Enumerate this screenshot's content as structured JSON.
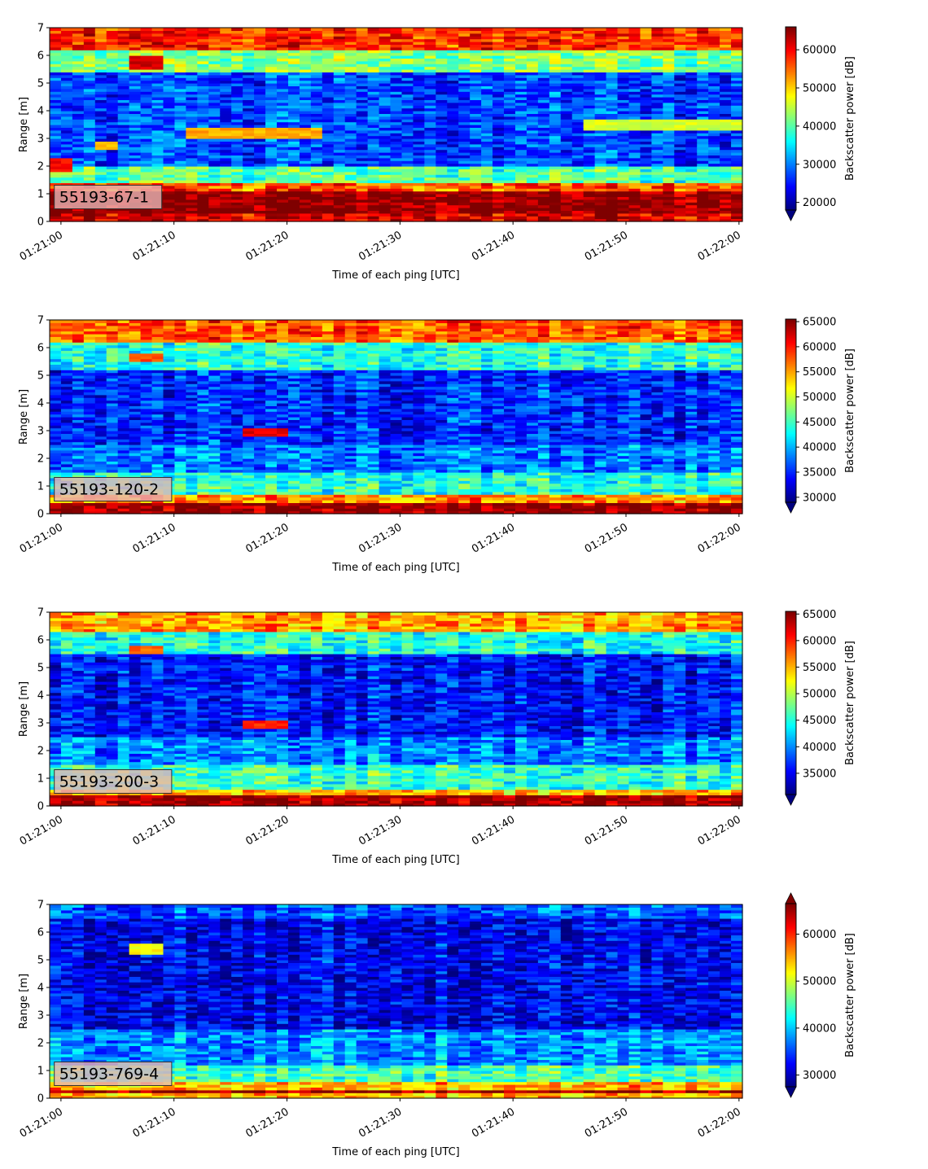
{
  "colors": {
    "jet": [
      "#00007f",
      "#0000ff",
      "#007fff",
      "#00ffff",
      "#7fff7f",
      "#ffff00",
      "#ff7f00",
      "#ff0000",
      "#7f0000"
    ],
    "annotation_bg": "#e8b4b4",
    "axis": "#000000"
  },
  "chart_data": [
    {
      "type": "heatmap",
      "annotation": "55193-67-1",
      "xlabel": "Time of each ping [UTC]",
      "ylabel": "Range [m]",
      "xticks": [
        "01:21:00",
        "01:21:10",
        "01:21:20",
        "01:21:30",
        "01:21:40",
        "01:21:50",
        "01:22:00"
      ],
      "xlim_seconds": [
        -1,
        60.3
      ],
      "ylim": [
        0,
        7
      ],
      "yticks": [
        0,
        1,
        2,
        3,
        4,
        5,
        6,
        7
      ],
      "colorbar_label": "Backscatter power [dB]",
      "clim": [
        18000,
        66000
      ],
      "cticks": [
        20000,
        30000,
        40000,
        50000,
        60000
      ],
      "colorbar_extend": "min",
      "bands": [
        {
          "range": [
            0,
            0.3
          ],
          "value": 62000
        },
        {
          "range": [
            0.3,
            1.1
          ],
          "value": 66000
        },
        {
          "range": [
            1.1,
            1.4
          ],
          "value": 56000
        },
        {
          "range": [
            1.4,
            2.0
          ],
          "value": 40000
        },
        {
          "range": [
            2.0,
            5.4
          ],
          "value": 27000
        },
        {
          "range": [
            5.4,
            6.2
          ],
          "value": 42000
        },
        {
          "range": [
            6.2,
            7.0
          ],
          "value": 58000
        }
      ],
      "features": [
        {
          "x": [
            -1,
            1
          ],
          "range": [
            1.8,
            2.3
          ],
          "value": 60000
        },
        {
          "x": [
            3.5,
            5.5
          ],
          "range": [
            2.6,
            2.9
          ],
          "value": 50000
        },
        {
          "x": [
            11.5,
            23.5
          ],
          "range": [
            3.0,
            3.4
          ],
          "value": 52000
        },
        {
          "x": [
            6.5,
            9.5
          ],
          "range": [
            5.5,
            6.0
          ],
          "value": 62000
        },
        {
          "x": [
            46,
            60
          ],
          "range": [
            3.3,
            3.7
          ],
          "value": 46000
        }
      ]
    },
    {
      "type": "heatmap",
      "annotation": "55193-120-2",
      "xlabel": "Time of each ping [UTC]",
      "ylabel": "Range [m]",
      "xticks": [
        "01:21:00",
        "01:21:10",
        "01:21:20",
        "01:21:30",
        "01:21:40",
        "01:21:50",
        "01:22:00"
      ],
      "xlim_seconds": [
        -1,
        60.3
      ],
      "ylim": [
        0,
        7
      ],
      "yticks": [
        0,
        1,
        2,
        3,
        4,
        5,
        6,
        7
      ],
      "colorbar_label": "Backscatter power [dB]",
      "clim": [
        29000,
        65500
      ],
      "cticks": [
        30000,
        35000,
        40000,
        45000,
        50000,
        55000,
        60000,
        65000
      ],
      "colorbar_extend": "min",
      "bands": [
        {
          "range": [
            0,
            0.4
          ],
          "value": 65000
        },
        {
          "range": [
            0.4,
            0.7
          ],
          "value": 56000
        },
        {
          "range": [
            0.7,
            1.5
          ],
          "value": 44000
        },
        {
          "range": [
            1.5,
            2.5
          ],
          "value": 38000
        },
        {
          "range": [
            2.5,
            5.2
          ],
          "value": 35000
        },
        {
          "range": [
            5.2,
            6.2
          ],
          "value": 44000
        },
        {
          "range": [
            6.2,
            7.0
          ],
          "value": 58000
        }
      ],
      "features": [
        {
          "x": [
            16,
            20
          ],
          "range": [
            2.8,
            3.1
          ],
          "value": 62000
        },
        {
          "x": [
            6.5,
            9.5
          ],
          "range": [
            5.5,
            5.8
          ],
          "value": 58000
        }
      ]
    },
    {
      "type": "heatmap",
      "annotation": "55193-200-3",
      "xlabel": "Time of each ping [UTC]",
      "ylabel": "Range [m]",
      "xticks": [
        "01:21:00",
        "01:21:10",
        "01:21:20",
        "01:21:30",
        "01:21:40",
        "01:21:50",
        "01:22:00"
      ],
      "xlim_seconds": [
        -1,
        60.3
      ],
      "ylim": [
        0,
        7
      ],
      "yticks": [
        0,
        1,
        2,
        3,
        4,
        5,
        6,
        7
      ],
      "colorbar_label": "Backscatter power [dB]",
      "clim": [
        31000,
        65500
      ],
      "cticks": [
        35000,
        40000,
        45000,
        50000,
        55000,
        60000,
        65000
      ],
      "colorbar_extend": "min",
      "bands": [
        {
          "range": [
            0,
            0.4
          ],
          "value": 65000
        },
        {
          "range": [
            0.4,
            0.6
          ],
          "value": 55000
        },
        {
          "range": [
            0.6,
            1.5
          ],
          "value": 46000
        },
        {
          "range": [
            1.5,
            2.5
          ],
          "value": 40000
        },
        {
          "range": [
            2.5,
            5.5
          ],
          "value": 36000
        },
        {
          "range": [
            5.5,
            6.3
          ],
          "value": 45000
        },
        {
          "range": [
            6.3,
            7.0
          ],
          "value": 56000
        }
      ],
      "features": [
        {
          "x": [
            16,
            20
          ],
          "range": [
            2.8,
            3.1
          ],
          "value": 60000
        },
        {
          "x": [
            6.5,
            9.5
          ],
          "range": [
            5.5,
            5.8
          ],
          "value": 58000
        }
      ]
    },
    {
      "type": "heatmap",
      "annotation": "55193-769-4",
      "xlabel": "Time of each ping [UTC]",
      "ylabel": "Range [m]",
      "xticks": [
        "01:21:00",
        "01:21:10",
        "01:21:20",
        "01:21:30",
        "01:21:40",
        "01:21:50",
        "01:22:00"
      ],
      "xlim_seconds": [
        -1,
        60.3
      ],
      "ylim": [
        0,
        7
      ],
      "yticks": [
        0,
        1,
        2,
        3,
        4,
        5,
        6,
        7
      ],
      "colorbar_label": "Backscatter power [dB]",
      "clim": [
        27500,
        66500
      ],
      "cticks": [
        30000,
        40000,
        50000,
        60000
      ],
      "colorbar_extend": "both",
      "bands": [
        {
          "range": [
            0,
            0.2
          ],
          "value": 55000
        },
        {
          "range": [
            0.2,
            0.35
          ],
          "value": 66000
        },
        {
          "range": [
            0.35,
            0.6
          ],
          "value": 55000
        },
        {
          "range": [
            0.6,
            1.2
          ],
          "value": 45000
        },
        {
          "range": [
            1.2,
            2.5
          ],
          "value": 38000
        },
        {
          "range": [
            2.5,
            6.5
          ],
          "value": 32000
        },
        {
          "range": [
            6.5,
            7.0
          ],
          "value": 36000
        }
      ],
      "features": [
        {
          "x": [
            6.5,
            9.5
          ],
          "range": [
            5.2,
            5.6
          ],
          "value": 52000
        }
      ]
    }
  ]
}
